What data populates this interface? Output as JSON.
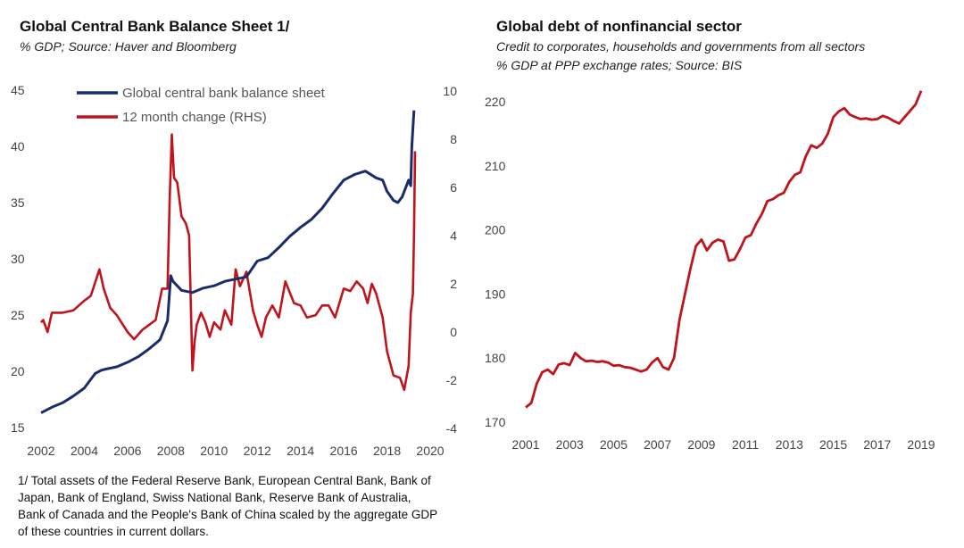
{
  "left_chart": {
    "title": "Global Central Bank Balance Sheet 1/",
    "subtitle": "% GDP; Source: Haver and Bloomberg",
    "footnote": "1/ Total assets of the Federal Reserve Bank, European Central Bank, Bank of Japan, Bank of England, Swiss National Bank, Reserve Bank of Australia, Bank of Canada and the People's Bank of China scaled by the aggregate GDP of these countries in current dollars."
  },
  "right_chart": {
    "title": "Global debt of nonfinancial sector",
    "subtitle_line1": "Credit to corporates, households and governments from all sectors",
    "subtitle_line2": "% GDP at PPP exchange rates; Source: BIS"
  },
  "colors": {
    "navy": "#1a2d6b",
    "red": "#c0141c"
  },
  "chart_data": [
    {
      "type": "line",
      "title": "Global Central Bank Balance Sheet 1/",
      "xlim": [
        2002,
        2020
      ],
      "ylim": [
        15,
        45
      ],
      "y2lim": [
        -4,
        10
      ],
      "x_ticks": [
        2002,
        2004,
        2006,
        2008,
        2010,
        2012,
        2014,
        2016,
        2018,
        2020
      ],
      "y_ticks": [
        15,
        20,
        25,
        30,
        35,
        40,
        45
      ],
      "y2_ticks": [
        -4,
        -2,
        0,
        2,
        4,
        6,
        8,
        10
      ],
      "legend_position": "top-left",
      "series": [
        {
          "name": "Global central bank balance sheet",
          "color": "#1a2d6b",
          "axis": "left",
          "x": [
            2002.0,
            2002.5,
            2003.0,
            2003.5,
            2004.0,
            2004.5,
            2004.8,
            2005.0,
            2005.5,
            2006.0,
            2006.5,
            2007.0,
            2007.5,
            2007.85,
            2008.0,
            2008.1,
            2008.5,
            2009.0,
            2009.5,
            2010.0,
            2010.5,
            2011.0,
            2011.5,
            2012.0,
            2012.5,
            2013.0,
            2013.5,
            2014.0,
            2014.5,
            2015.0,
            2015.5,
            2016.0,
            2016.5,
            2017.0,
            2017.5,
            2017.8,
            2018.0,
            2018.3,
            2018.5,
            2018.7,
            2018.9,
            2019.0,
            2019.1,
            2019.15,
            2019.25
          ],
          "values": [
            16.3,
            16.8,
            17.2,
            17.8,
            18.5,
            19.8,
            20.1,
            20.2,
            20.4,
            20.8,
            21.3,
            22.0,
            22.8,
            24.5,
            28.5,
            28.0,
            27.2,
            27.0,
            27.4,
            27.6,
            28.0,
            28.2,
            28.4,
            29.8,
            30.1,
            31.0,
            32.0,
            32.8,
            33.5,
            34.5,
            35.8,
            37.0,
            37.5,
            37.8,
            37.2,
            37.0,
            36.0,
            35.2,
            35.0,
            35.5,
            36.5,
            37.0,
            36.5,
            40.0,
            43.2
          ]
        },
        {
          "name": "12 month change (RHS)",
          "color": "#c0141c",
          "axis": "right",
          "x": [
            2002.0,
            2002.1,
            2002.3,
            2002.5,
            2003.0,
            2003.5,
            2004.0,
            2004.3,
            2004.7,
            2004.9,
            2005.2,
            2005.5,
            2006.0,
            2006.3,
            2006.7,
            2007.0,
            2007.3,
            2007.6,
            2007.85,
            2007.95,
            2008.05,
            2008.15,
            2008.3,
            2008.5,
            2008.7,
            2008.85,
            2009.0,
            2009.1,
            2009.2,
            2009.4,
            2009.6,
            2009.8,
            2010.0,
            2010.3,
            2010.5,
            2010.8,
            2011.0,
            2011.2,
            2011.5,
            2011.8,
            2012.0,
            2012.2,
            2012.4,
            2012.7,
            2013.0,
            2013.3,
            2013.7,
            2014.0,
            2014.3,
            2014.7,
            2015.0,
            2015.3,
            2015.6,
            2016.0,
            2016.3,
            2016.6,
            2016.9,
            2017.1,
            2017.3,
            2017.5,
            2017.8,
            2018.0,
            2018.3,
            2018.6,
            2018.8,
            2019.0,
            2019.1,
            2019.2,
            2019.25,
            2019.3
          ],
          "values": [
            0.4,
            0.5,
            0.0,
            0.8,
            0.8,
            0.9,
            1.3,
            1.5,
            2.6,
            1.8,
            1.0,
            0.7,
            0.0,
            -0.3,
            0.1,
            0.3,
            0.5,
            1.8,
            1.8,
            5.5,
            8.2,
            6.4,
            6.2,
            4.8,
            4.5,
            4.0,
            -1.6,
            -0.4,
            0.3,
            0.8,
            0.4,
            -0.2,
            0.4,
            0.1,
            0.9,
            0.3,
            2.6,
            1.9,
            2.5,
            0.9,
            0.3,
            -0.2,
            0.6,
            1.1,
            0.6,
            2.1,
            1.2,
            1.1,
            0.6,
            0.7,
            1.1,
            1.1,
            0.6,
            1.8,
            1.7,
            2.1,
            1.8,
            1.2,
            2.0,
            1.6,
            0.6,
            -0.8,
            -1.8,
            -1.9,
            -2.4,
            -1.4,
            0.8,
            1.6,
            4.0,
            7.5
          ]
        }
      ]
    },
    {
      "type": "line",
      "title": "Global debt of nonfinancial sector",
      "xlim": [
        2001,
        2019
      ],
      "ylim": [
        170,
        220
      ],
      "x_ticks": [
        2001,
        2003,
        2005,
        2007,
        2009,
        2011,
        2013,
        2015,
        2017,
        2019
      ],
      "y_ticks": [
        170,
        180,
        190,
        200,
        210,
        220
      ],
      "series": [
        {
          "color": "#c0141c",
          "x": [
            2001.0,
            2001.25,
            2001.5,
            2001.75,
            2002.0,
            2002.25,
            2002.5,
            2002.75,
            2003.0,
            2003.25,
            2003.5,
            2003.75,
            2004.0,
            2004.25,
            2004.5,
            2004.75,
            2005.0,
            2005.25,
            2005.5,
            2005.75,
            2006.0,
            2006.25,
            2006.5,
            2006.75,
            2007.0,
            2007.25,
            2007.5,
            2007.75,
            2008.0,
            2008.25,
            2008.5,
            2008.75,
            2009.0,
            2009.25,
            2009.5,
            2009.75,
            2010.0,
            2010.25,
            2010.5,
            2010.75,
            2011.0,
            2011.25,
            2011.5,
            2011.75,
            2012.0,
            2012.25,
            2012.5,
            2012.75,
            2013.0,
            2013.25,
            2013.5,
            2013.75,
            2014.0,
            2014.25,
            2014.5,
            2014.75,
            2015.0,
            2015.25,
            2015.5,
            2015.75,
            2016.0,
            2016.25,
            2016.5,
            2016.75,
            2017.0,
            2017.25,
            2017.5,
            2017.75,
            2018.0,
            2018.25,
            2018.5,
            2018.75,
            2019.0
          ],
          "values": [
            172.3,
            173.0,
            176.0,
            177.8,
            178.2,
            177.5,
            179.0,
            179.2,
            178.9,
            180.8,
            180.0,
            179.5,
            179.6,
            179.4,
            179.5,
            179.3,
            178.8,
            178.9,
            178.6,
            178.5,
            178.2,
            177.9,
            178.2,
            179.3,
            180.0,
            178.6,
            178.2,
            180.0,
            186.0,
            190.0,
            194.0,
            197.5,
            198.5,
            196.8,
            198.0,
            198.5,
            198.2,
            195.2,
            195.4,
            197.0,
            198.8,
            199.2,
            201.0,
            202.5,
            204.5,
            204.8,
            205.4,
            205.8,
            207.5,
            208.6,
            209.0,
            211.5,
            213.2,
            212.8,
            213.5,
            215.0,
            217.6,
            218.5,
            219.0,
            218.0,
            217.6,
            217.3,
            217.4,
            217.2,
            217.3,
            217.8,
            217.5,
            217.0,
            216.6,
            217.6,
            218.6,
            219.6,
            221.7
          ]
        }
      ]
    }
  ]
}
